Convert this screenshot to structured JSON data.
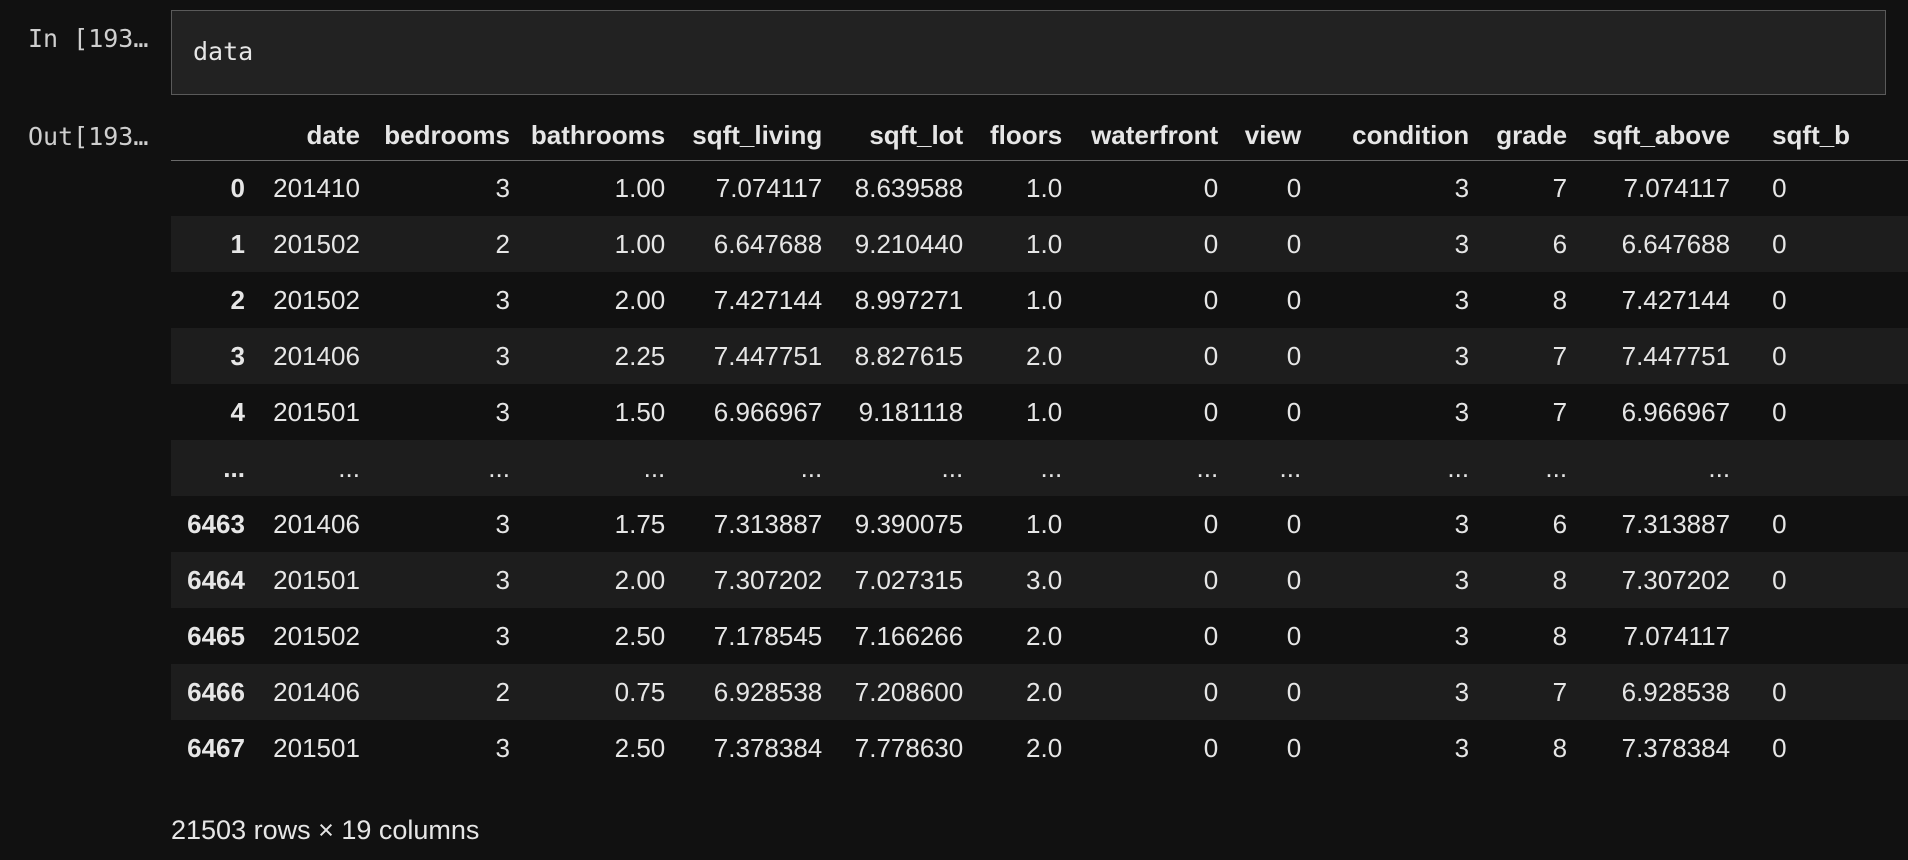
{
  "cell": {
    "in_prompt": "In [193…",
    "out_prompt": "Out[193…",
    "code": "data"
  },
  "table": {
    "columns": [
      "",
      "date",
      "bedrooms",
      "bathrooms",
      "sqft_living",
      "sqft_lot",
      "floors",
      "waterfront",
      "view",
      "condition",
      "grade",
      "sqft_above",
      "sqft_b"
    ],
    "rows": [
      [
        "0",
        "201410",
        "3",
        "1.00",
        "7.074117",
        "8.639588",
        "1.0",
        "0",
        "0",
        "3",
        "7",
        "7.074117",
        "0"
      ],
      [
        "1",
        "201502",
        "2",
        "1.00",
        "6.647688",
        "9.210440",
        "1.0",
        "0",
        "0",
        "3",
        "6",
        "6.647688",
        "0"
      ],
      [
        "2",
        "201502",
        "3",
        "2.00",
        "7.427144",
        "8.997271",
        "1.0",
        "0",
        "0",
        "3",
        "8",
        "7.427144",
        "0"
      ],
      [
        "3",
        "201406",
        "3",
        "2.25",
        "7.447751",
        "8.827615",
        "2.0",
        "0",
        "0",
        "3",
        "7",
        "7.447751",
        "0"
      ],
      [
        "4",
        "201501",
        "3",
        "1.50",
        "6.966967",
        "9.181118",
        "1.0",
        "0",
        "0",
        "3",
        "7",
        "6.966967",
        "0"
      ],
      [
        "...",
        "...",
        "...",
        "...",
        "...",
        "...",
        "...",
        "...",
        "...",
        "...",
        "...",
        "...",
        ""
      ],
      [
        "6463",
        "201406",
        "3",
        "1.75",
        "7.313887",
        "9.390075",
        "1.0",
        "0",
        "0",
        "3",
        "6",
        "7.313887",
        "0"
      ],
      [
        "6464",
        "201501",
        "3",
        "2.00",
        "7.307202",
        "7.027315",
        "3.0",
        "0",
        "0",
        "3",
        "8",
        "7.307202",
        "0"
      ],
      [
        "6465",
        "201502",
        "3",
        "2.50",
        "7.178545",
        "7.166266",
        "2.0",
        "0",
        "0",
        "3",
        "8",
        "7.074117",
        ""
      ],
      [
        "6466",
        "201406",
        "2",
        "0.75",
        "6.928538",
        "7.208600",
        "2.0",
        "0",
        "0",
        "3",
        "7",
        "6.928538",
        "0"
      ],
      [
        "6467",
        "201501",
        "3",
        "2.50",
        "7.378384",
        "7.778630",
        "2.0",
        "0",
        "0",
        "3",
        "8",
        "7.378384",
        "0"
      ]
    ],
    "footer": "21503 rows × 19 columns"
  }
}
